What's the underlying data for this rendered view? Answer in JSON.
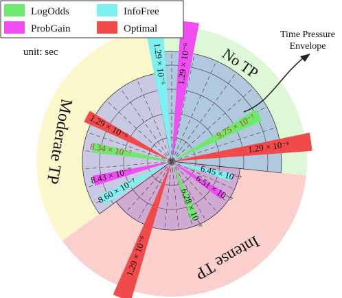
{
  "chart_data": {
    "type": "polar-bar",
    "unit_label": "unit: sec",
    "legend": [
      {
        "name": "LogOdds",
        "color": "#6ee86e"
      },
      {
        "name": "InfoFree",
        "color": "#7ff0f0"
      },
      {
        "name": "ProbGain",
        "color": "#f04ef0"
      },
      {
        "name": "Optimal",
        "color": "#f04a4a"
      }
    ],
    "regions": [
      {
        "name": "No TP",
        "color": "#def7d6"
      },
      {
        "name": "Moderate TP",
        "color": "#fdf7cc"
      },
      {
        "name": "Intense TP",
        "color": "#fbd0cc"
      }
    ],
    "sector_colors": {
      "No TP": "#b1c9de",
      "Moderate TP": "#c9c9e3",
      "Intense TP": "#cfabd4"
    },
    "annotation": {
      "title_line1": "Time Pressure",
      "title_line2": "Envelope"
    },
    "series": [
      {
        "region": "No TP",
        "method": "InfoFree",
        "value_label": "1.29 × 10⁻⁶",
        "value": 1.29e-06
      },
      {
        "region": "No TP",
        "method": "ProbGain",
        "value_label": "1.29 × 10⁻⁶",
        "value": 1.29e-06
      },
      {
        "region": "No TP",
        "method": "LogOdds",
        "value_label": "9.75 × 10⁻⁷",
        "value": 9.75e-07
      },
      {
        "region": "No TP",
        "method": "Optimal",
        "value_label": "1.29 × 10⁻⁶",
        "value": 1.29e-06
      },
      {
        "region": "Moderate TP",
        "method": "Optimal",
        "value_label": "1.29 × 10⁻⁶",
        "value": 1.29e-06
      },
      {
        "region": "Moderate TP",
        "method": "LogOdds",
        "value_label": "8.34 × 10⁻⁷",
        "value": 8.34e-07
      },
      {
        "region": "Moderate TP",
        "method": "ProbGain",
        "value_label": "8.43 × 10⁻⁷",
        "value": 8.43e-07
      },
      {
        "region": "Moderate TP",
        "method": "InfoFree",
        "value_label": "8.60 × 10⁻⁷",
        "value": 8.6e-07
      },
      {
        "region": "Intense TP",
        "method": "InfoFree",
        "value_label": "6.45 × 10⁻⁷",
        "value": 6.45e-07
      },
      {
        "region": "Intense TP",
        "method": "ProbGain",
        "value_label": "6.51 × 10⁻⁷",
        "value": 6.51e-07
      },
      {
        "region": "Intense TP",
        "method": "LogOdds",
        "value_label": "6.28 × 10⁻⁷",
        "value": 6.28e-07
      },
      {
        "region": "Intense TP",
        "method": "Optimal",
        "value_label": "1.29 × 10⁻⁶",
        "value": 1.29e-06
      }
    ]
  }
}
